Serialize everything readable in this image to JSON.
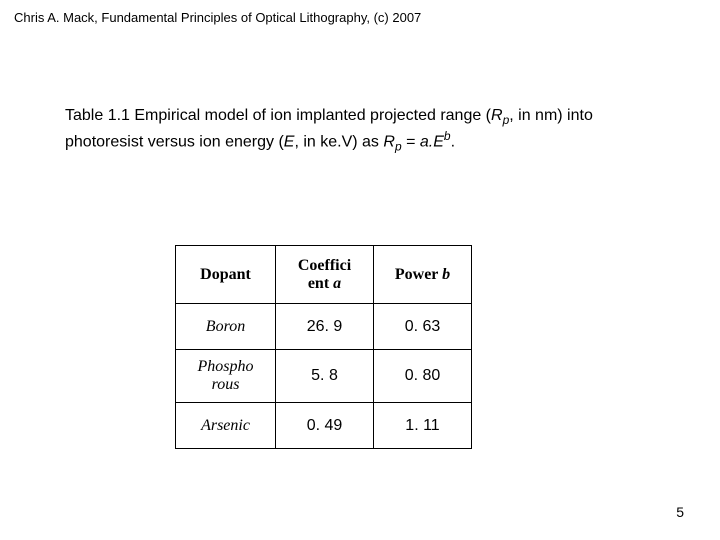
{
  "header": "Chris A. Mack, Fundamental Principles of Optical Lithography, (c) 2007",
  "caption": {
    "prefix": "Table 1.1  Empirical model of ion implanted projected range (",
    "r": "R",
    "p1": "p",
    "mid1": ", in nm) into photoresist versus ion energy (",
    "e": "E",
    "mid2": ", in ke.V) as ",
    "r2": "R",
    "p2": "p",
    "eq": " = ",
    "a": "a.E",
    "b": "b",
    "end": "."
  },
  "columns": {
    "c1": "Dopant",
    "c2a": "Coeffici",
    "c2b": "ent ",
    "c2var": "a",
    "c3a": "Power ",
    "c3var": "b"
  },
  "rows": [
    {
      "dopant": "Boron",
      "a": "26. 9",
      "b": "0. 63"
    },
    {
      "dopant_l1": "Phospho",
      "dopant_l2": "rous",
      "a": "5. 8",
      "b": "0. 80"
    },
    {
      "dopant": "Arsenic",
      "a": "0. 49",
      "b": "1. 11"
    }
  ],
  "pagenum": "5"
}
